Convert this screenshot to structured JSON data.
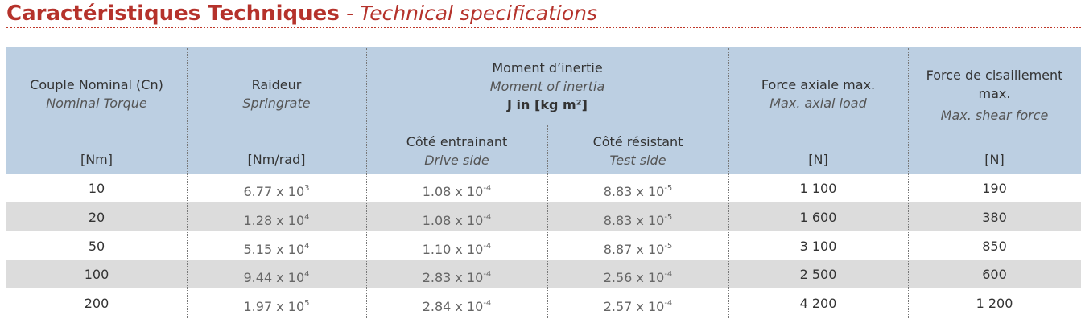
{
  "header": {
    "title": "Caractéristiques Techniques",
    "subtitle": "- Technical specifications"
  },
  "table": {
    "columns": [
      {
        "fr": "Couple Nominal (Cn)",
        "en": "Nominal Torque",
        "unit": "[Nm]"
      },
      {
        "fr": "Raideur",
        "en": "Springrate",
        "unit": "[Nm/rad]"
      },
      {
        "fr": "Côté entrainant",
        "en": "Drive side"
      },
      {
        "fr": "Côté résistant",
        "en": "Test side"
      },
      {
        "fr": "Force axiale max.",
        "en": "Max. axial load",
        "unit": "[N]"
      },
      {
        "fr": "Force de cisaillement max.",
        "en": "Max. shear force",
        "unit": "[N]"
      }
    ],
    "group": {
      "fr": "Moment d’inertie",
      "en": "Moment of inertia",
      "unit": "J in [kg m²]"
    },
    "rows": [
      [
        "10",
        {
          "base": "6.77 x 10",
          "exp": "3"
        },
        {
          "base": "1.08 x 10",
          "exp": "-4"
        },
        {
          "base": "8.83 x 10",
          "exp": "-5"
        },
        "1 100",
        "190"
      ],
      [
        "20",
        {
          "base": "1.28 x 10",
          "exp": "4"
        },
        {
          "base": "1.08 x 10",
          "exp": "-4"
        },
        {
          "base": "8.83 x 10",
          "exp": "-5"
        },
        "1 600",
        "380"
      ],
      [
        "50",
        {
          "base": "5.15 x 10",
          "exp": "4"
        },
        {
          "base": "1.10 x 10",
          "exp": "-4"
        },
        {
          "base": "8.87 x 10",
          "exp": "-5"
        },
        "3 100",
        "850"
      ],
      [
        "100",
        {
          "base": "9.44 x 10",
          "exp": "4"
        },
        {
          "base": "2.83 x 10",
          "exp": "-4"
        },
        {
          "base": "2.56 x 10",
          "exp": "-4"
        },
        "2 500",
        "600"
      ],
      [
        "200",
        {
          "base": "1.97 x 10",
          "exp": "5"
        },
        {
          "base": "2.84 x 10",
          "exp": "-4"
        },
        {
          "base": "2.57 x 10",
          "exp": "-4"
        },
        "4 200",
        "1 200"
      ]
    ]
  }
}
